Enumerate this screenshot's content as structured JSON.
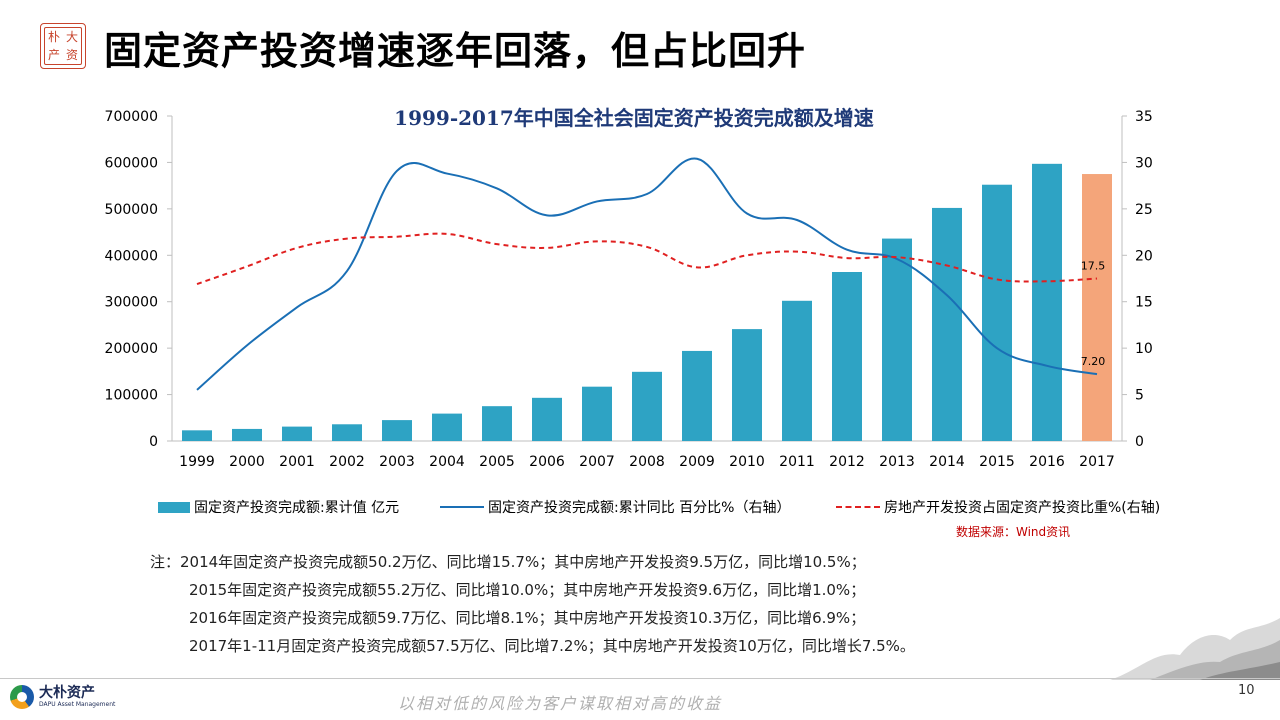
{
  "page": {
    "title": "固定资产投资增速逐年回落，但占比回升",
    "seal_chars": [
      "大",
      "朴",
      "资",
      "产"
    ],
    "source": "数据来源：Wind资讯",
    "notes": [
      "注：2014年固定资产投资完成额50.2万亿、同比增15.7%；其中房地产开发投资9.5万亿，同比增10.5%；",
      "2015年固定资产投资完成额55.2万亿、同比增10.0%；其中房地产开发投资9.6万亿，同比增1.0%；",
      "2016年固定资产投资完成额59.7万亿、同比增8.1%；其中房地产开发投资10.3万亿，同比增6.9%；",
      "2017年1-11月固定资产投资完成额57.5万亿、同比增7.2%；其中房地产开发投资10万亿，同比增长7.5%。"
    ],
    "footer": {
      "logo_cn": "大朴资产",
      "logo_en": "DAPU Asset Management",
      "slogan": "以相对低的风险为客户谋取相对高的收益",
      "page_number": "10"
    }
  },
  "colors": {
    "bar": "#2ea3c4",
    "bar_highlight": "#f4a57a",
    "growth_line": "#1a6fb5",
    "share_line": "#e02020",
    "title_text": "#1f3a78",
    "source_text": "#c00000"
  },
  "chart_data": {
    "type": "bar",
    "title": "1999-2017年中国全社会固定资产投资完成额及增速",
    "categories": [
      "1999",
      "2000",
      "2001",
      "2002",
      "2003",
      "2004",
      "2005",
      "2006",
      "2007",
      "2008",
      "2009",
      "2010",
      "2011",
      "2012",
      "2013",
      "2014",
      "2015",
      "2016",
      "2017"
    ],
    "series": [
      {
        "name": "固定资产投资完成额:累计值 亿元",
        "type": "bar",
        "axis": "left",
        "values": [
          23000,
          26000,
          31000,
          36000,
          45000,
          59000,
          75000,
          93000,
          117000,
          149000,
          194000,
          241000,
          302000,
          364000,
          436000,
          502000,
          552000,
          597000,
          575000
        ]
      },
      {
        "name": "固定资产投资完成额:累计同比 百分比%（右轴）",
        "type": "line",
        "axis": "right",
        "values": [
          5.5,
          10.3,
          14.4,
          18.3,
          29.1,
          28.8,
          27.2,
          24.3,
          25.8,
          26.6,
          30.4,
          24.5,
          23.8,
          20.6,
          19.6,
          15.7,
          10.0,
          8.1,
          7.2
        ]
      },
      {
        "name": "房地产开发投资占固定资产投资比重%(右轴)",
        "type": "line",
        "style": "dashed",
        "axis": "right",
        "values": [
          16.9,
          18.8,
          20.8,
          21.8,
          22.0,
          22.3,
          21.2,
          20.8,
          21.5,
          20.9,
          18.7,
          20.0,
          20.4,
          19.7,
          19.8,
          18.9,
          17.4,
          17.2,
          17.5
        ]
      }
    ],
    "highlight_index": 18,
    "annotations": [
      {
        "series": 2,
        "index": 18,
        "text": "17.5"
      },
      {
        "series": 1,
        "index": 18,
        "text": "7.20"
      }
    ],
    "ylim_left": [
      0,
      700000
    ],
    "yticks_left": [
      "700000",
      "600000",
      "500000",
      "400000",
      "300000",
      "200000",
      "100000",
      "0"
    ],
    "ylim_right": [
      0,
      35
    ],
    "yticks_right": [
      "35",
      "30",
      "25",
      "20",
      "15",
      "10",
      "5",
      "0"
    ],
    "grid": false,
    "legend": "bottom"
  }
}
